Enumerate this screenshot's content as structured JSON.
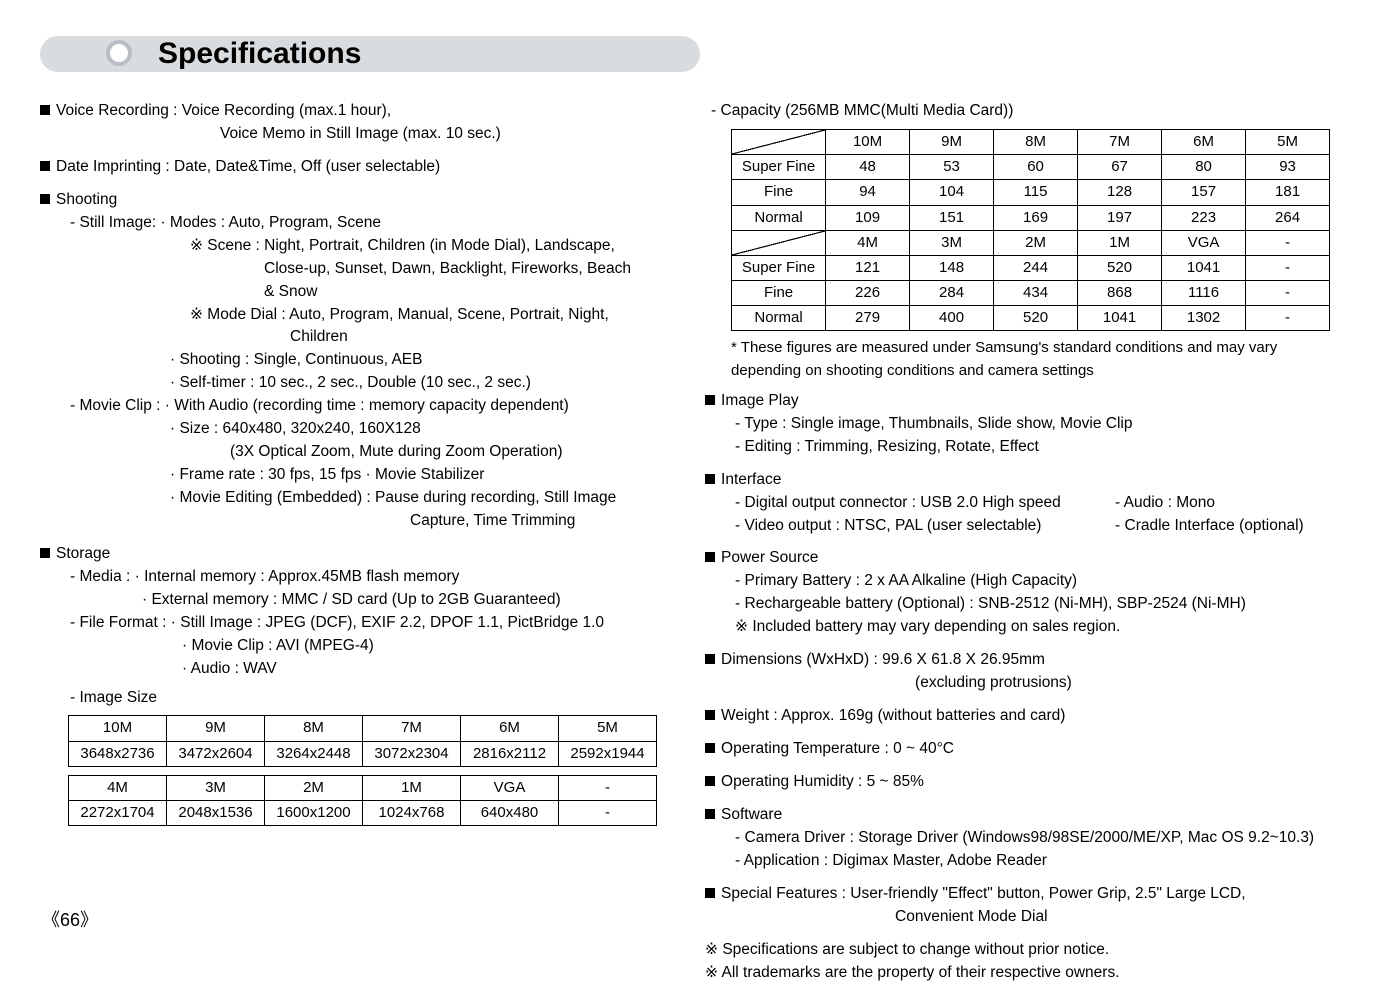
{
  "title": "Specifications",
  "page_number": "66",
  "left": {
    "voice_recording": "Voice Recording : Voice Recording (max.1 hour),",
    "voice_recording_2": "Voice Memo in Still Image (max. 10 sec.)",
    "date_imprinting": "Date Imprinting : Date, Date&Time, Off (user selectable)",
    "shooting": "Shooting",
    "still_image": "- Still Image:   · Modes : Auto, Program, Scene",
    "scene": "Scene : Night, Portrait, Children (in Mode Dial), Landscape,",
    "scene_2": "Close-up, Sunset, Dawn, Backlight, Fireworks, Beach",
    "scene_3": "& Snow",
    "mode_dial": "Mode Dial : Auto, Program, Manual, Scene, Portrait, Night,",
    "mode_dial_2": "Children",
    "shoot_modes": "Shooting : Single, Continuous, AEB",
    "self_timer": "Self-timer : 10 sec., 2 sec., Double (10 sec., 2 sec.)",
    "movie_clip": "- Movie Clip :  · With Audio (recording time : memory capacity dependent)",
    "movie_size": "Size : 640x480, 320x240, 160X128",
    "movie_zoom": "(3X Optical Zoom, Mute during Zoom Operation)",
    "frame_rate": "Frame rate : 30 fps, 15 fps         · Movie Stabilizer",
    "movie_edit": "Movie Editing (Embedded) : Pause during recording, Still Image",
    "movie_edit_2": "Capture, Time Trimming",
    "storage": "Storage",
    "media": "- Media :  · Internal memory : Approx.45MB flash memory",
    "media_ext": "External memory : MMC / SD card (Up to 2GB Guaranteed)",
    "file_format": "- File Format :  · Still Image : JPEG (DCF), EXIF 2.2, DPOF 1.1, PictBridge 1.0",
    "file_movie": "Movie Clip : AVI (MPEG-4)",
    "file_audio": "Audio : WAV",
    "image_size": "- Image Size",
    "image_size_table": {
      "headers1": [
        "10M",
        "9M",
        "8M",
        "7M",
        "6M",
        "5M"
      ],
      "row1": [
        "3648x2736",
        "3472x2604",
        "3264x2448",
        "3072x2304",
        "2816x2112",
        "2592x1944"
      ],
      "headers2": [
        "4M",
        "3M",
        "2M",
        "1M",
        "VGA",
        "-"
      ],
      "row2": [
        "2272x1704",
        "2048x1536",
        "1600x1200",
        "1024x768",
        "640x480",
        "-"
      ]
    }
  },
  "right": {
    "capacity_title": "- Capacity (256MB MMC(Multi Media Card))",
    "cap_table": {
      "cols1": [
        "10M",
        "9M",
        "8M",
        "7M",
        "6M",
        "5M"
      ],
      "rows1": [
        [
          "Super Fine",
          "48",
          "53",
          "60",
          "67",
          "80",
          "93"
        ],
        [
          "Fine",
          "94",
          "104",
          "115",
          "128",
          "157",
          "181"
        ],
        [
          "Normal",
          "109",
          "151",
          "169",
          "197",
          "223",
          "264"
        ]
      ],
      "cols2": [
        "4M",
        "3M",
        "2M",
        "1M",
        "VGA",
        "-"
      ],
      "rows2": [
        [
          "Super Fine",
          "121",
          "148",
          "244",
          "520",
          "1041",
          "-"
        ],
        [
          "Fine",
          "226",
          "284",
          "434",
          "868",
          "1116",
          "-"
        ],
        [
          "Normal",
          "279",
          "400",
          "520",
          "1041",
          "1302",
          "-"
        ]
      ]
    },
    "footnote": "* These figures are measured under Samsung's standard conditions and may vary depending on shooting conditions and camera settings",
    "image_play": "Image Play",
    "ip_type": "- Type    : Single image, Thumbnails, Slide show, Movie Clip",
    "ip_edit": "- Editing : Trimming, Resizing, Rotate, Effect",
    "interface": "Interface",
    "if_digital": "- Digital output connector : USB 2.0 High speed",
    "if_audio": "- Audio : Mono",
    "if_video": "- Video output : NTSC, PAL (user selectable)",
    "if_cradle": "- Cradle Interface (optional)",
    "power": "Power Source",
    "power_primary": "- Primary Battery : 2 x AA Alkaline (High Capacity)",
    "power_recharge": "- Rechargeable battery (Optional) :  SNB-2512 (Ni-MH), SBP-2524 (Ni-MH)",
    "power_note": "Included battery may vary depending on sales region.",
    "dimensions": "Dimensions (WxHxD) : 99.6 X 61.8 X 26.95mm",
    "dimensions_2": "(excluding protrusions)",
    "weight": "Weight : Approx. 169g (without batteries and card)",
    "op_temp": "Operating Temperature : 0 ~ 40°C",
    "op_humid": "Operating Humidity : 5 ~ 85%",
    "software": "Software",
    "sw_driver": "- Camera Driver : Storage Driver (Windows98/98SE/2000/ME/XP, Mac OS 9.2~10.3)",
    "sw_app": "- Application : Digimax Master, Adobe Reader",
    "special": "Special Features : User-friendly \"Effect\" button, Power Grip, 2.5\" Large LCD,",
    "special_2": "Convenient Mode Dial",
    "disclaimer1": "Specifications are subject to change without prior notice.",
    "disclaimer2": "All trademarks are the property of their respective owners."
  }
}
